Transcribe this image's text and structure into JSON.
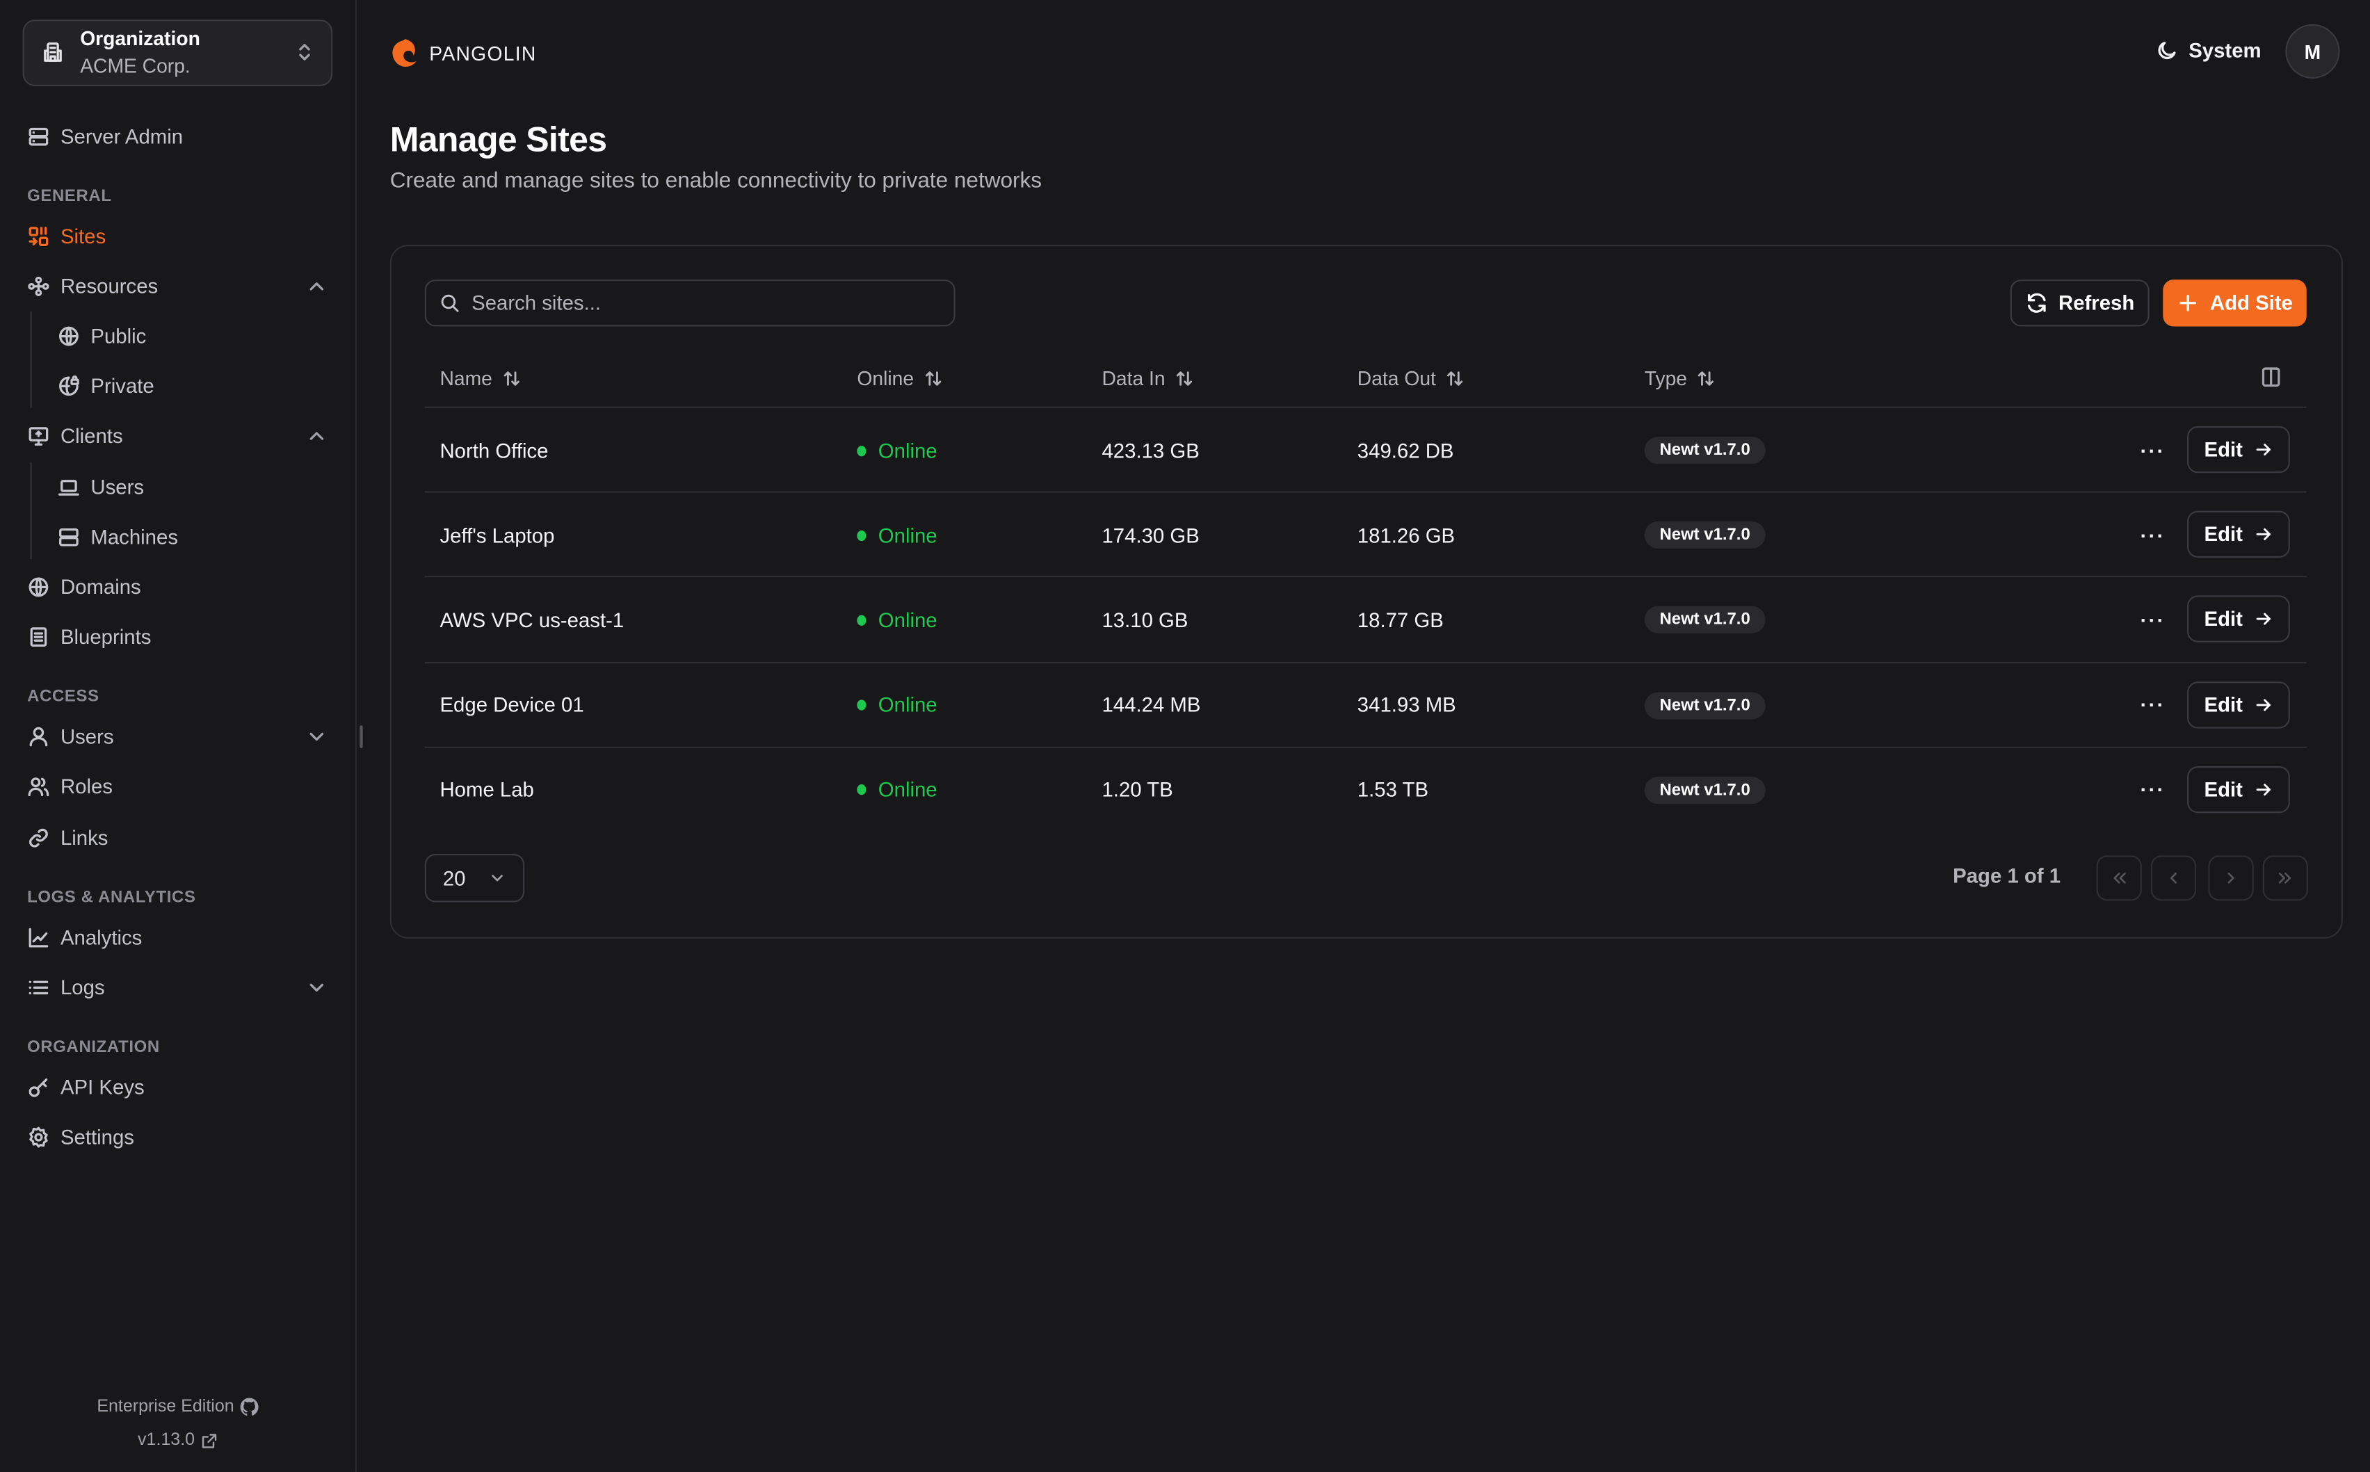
{
  "colors": {
    "accent": "#f46a1f",
    "online": "#1ec950",
    "background": "#18181b"
  },
  "org": {
    "label": "Organization",
    "name": "ACME Corp."
  },
  "sidebar": {
    "server_admin": "Server Admin",
    "sections": {
      "general": "GENERAL",
      "access": "ACCESS",
      "logs": "LOGS & ANALYTICS",
      "organization": "ORGANIZATION"
    },
    "items": {
      "sites": "Sites",
      "resources": "Resources",
      "public": "Public",
      "private": "Private",
      "clients": "Clients",
      "users_client": "Users",
      "machines": "Machines",
      "domains": "Domains",
      "blueprints": "Blueprints",
      "users": "Users",
      "roles": "Roles",
      "links": "Links",
      "analytics": "Analytics",
      "logs": "Logs",
      "api_keys": "API Keys",
      "settings": "Settings"
    },
    "footer": {
      "edition": "Enterprise Edition",
      "version": "v1.13.0"
    }
  },
  "header": {
    "brand": "PANGOLIN",
    "theme": "System",
    "avatar": "M"
  },
  "page": {
    "title": "Manage Sites",
    "subtitle": "Create and manage sites to enable connectivity to private networks"
  },
  "toolbar": {
    "search_placeholder": "Search sites...",
    "refresh": "Refresh",
    "add": "Add Site"
  },
  "table": {
    "columns": [
      "Name",
      "Online",
      "Data In",
      "Data Out",
      "Type"
    ],
    "rows": [
      {
        "name": "North Office",
        "status": "Online",
        "data_in": "423.13 GB",
        "data_out": "349.62 DB",
        "type": "Newt v1.7.0",
        "action": "Edit"
      },
      {
        "name": "Jeff's Laptop",
        "status": "Online",
        "data_in": "174.30 GB",
        "data_out": "181.26 GB",
        "type": "Newt v1.7.0",
        "action": "Edit"
      },
      {
        "name": "AWS VPC us-east-1",
        "status": "Online",
        "data_in": "13.10 GB",
        "data_out": "18.77 GB",
        "type": "Newt v1.7.0",
        "action": "Edit"
      },
      {
        "name": "Edge Device 01",
        "status": "Online",
        "data_in": "144.24 MB",
        "data_out": "341.93 MB",
        "type": "Newt v1.7.0",
        "action": "Edit"
      },
      {
        "name": "Home Lab",
        "status": "Online",
        "data_in": "1.20 TB",
        "data_out": "1.53 TB",
        "type": "Newt v1.7.0",
        "action": "Edit"
      }
    ]
  },
  "pagination": {
    "page_size": "20",
    "page_text": "Page 1 of 1"
  }
}
